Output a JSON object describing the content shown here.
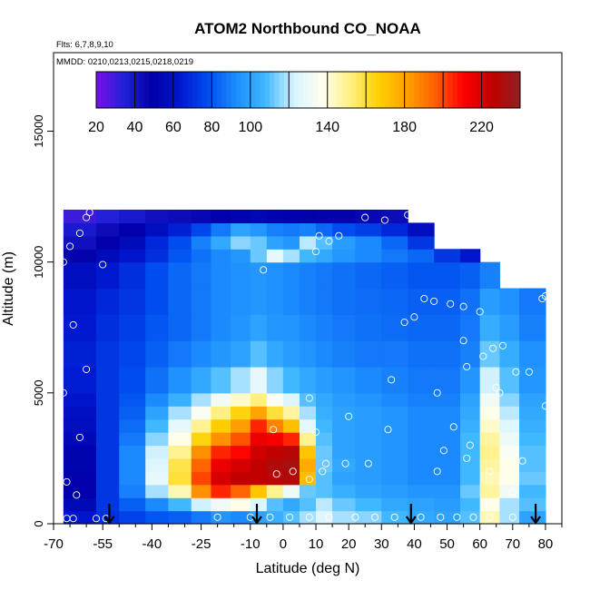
{
  "chart_data": {
    "type": "heatmap",
    "title": "ATOM2 Northbound CO_NOAA",
    "flights_label": "Flts: 6,7,8,9,10",
    "dates_label": "MMDD: 0210,0213,0215,0218,0219",
    "xlabel": "Latitude (deg N)",
    "ylabel": "Altitude (m)",
    "xlim": [
      -70,
      85
    ],
    "ylim": [
      0,
      18000
    ],
    "x_ticks": [
      -70,
      -55,
      -40,
      -25,
      -10,
      0,
      10,
      20,
      30,
      40,
      50,
      60,
      70,
      80
    ],
    "y_ticks": [
      0,
      5000,
      10000,
      15000
    ],
    "y_tick_labels": [
      "0",
      "5000",
      "10000",
      "15000"
    ],
    "colorbar": {
      "range": [
        20,
        240
      ],
      "ticks": [
        20,
        40,
        60,
        80,
        100,
        140,
        180,
        220
      ],
      "colors": [
        "#7a10e8",
        "#2020d8",
        "#0000a8",
        "#0018d0",
        "#0050f0",
        "#1e90ff",
        "#40b8ff",
        "#d8f4ff",
        "#fffff0",
        "#fff080",
        "#ffd000",
        "#ffa000",
        "#ff6000",
        "#ff0000",
        "#c00000",
        "#902020"
      ]
    },
    "heatmap": {
      "lat_edges": [
        -67,
        -57,
        -50,
        -42,
        -35,
        -28,
        -22,
        -16,
        -10,
        -5,
        0,
        5,
        10,
        15,
        22,
        30,
        38,
        46,
        54,
        60,
        66,
        72,
        80
      ],
      "alt_edges": [
        0,
        500,
        1000,
        1500,
        2000,
        2500,
        3000,
        3500,
        4000,
        4500,
        5000,
        6000,
        7000,
        8000,
        9000,
        10000,
        10500,
        11000,
        11500,
        12000
      ],
      "alt_max_by_column": [
        12000,
        12000,
        12000,
        12000,
        12000,
        12000,
        12000,
        12000,
        12000,
        12000,
        12000,
        12000,
        12000,
        12000,
        12000,
        12000,
        11500,
        10500,
        10500,
        10000,
        9500,
        9000
      ],
      "values": [
        [
          62,
          70,
          75,
          80,
          82,
          88,
          95,
          92,
          100,
          105,
          110,
          118,
          125,
          118,
          115,
          108,
          102,
          100,
          110,
          145,
          118,
          100
        ],
        [
          55,
          72,
          82,
          92,
          108,
          122,
          132,
          138,
          125,
          110,
          102,
          110,
          120,
          112,
          108,
          102,
          100,
          98,
          108,
          138,
          118,
          110
        ],
        [
          50,
          72,
          90,
          118,
          145,
          185,
          205,
          195,
          170,
          150,
          130,
          112,
          110,
          105,
          100,
          98,
          95,
          95,
          112,
          148,
          132,
          108
        ],
        [
          50,
          72,
          92,
          128,
          160,
          200,
          220,
          225,
          225,
          228,
          230,
          172,
          110,
          100,
          98,
          95,
          92,
          92,
          108,
          145,
          138,
          112
        ],
        [
          52,
          72,
          92,
          125,
          158,
          195,
          215,
          220,
          225,
          230,
          232,
          178,
          112,
          102,
          98,
          95,
          92,
          92,
          108,
          148,
          138,
          110
        ],
        [
          52,
          72,
          92,
          122,
          150,
          185,
          205,
          210,
          222,
          225,
          228,
          170,
          112,
          100,
          98,
          95,
          92,
          92,
          108,
          150,
          135,
          110
        ],
        [
          55,
          72,
          88,
          115,
          138,
          165,
          185,
          198,
          215,
          212,
          205,
          150,
          110,
          100,
          98,
          95,
          92,
          92,
          108,
          148,
          130,
          108
        ],
        [
          58,
          72,
          85,
          108,
          128,
          150,
          168,
          182,
          205,
          188,
          172,
          128,
          108,
          100,
          98,
          95,
          92,
          92,
          105,
          142,
          125,
          105
        ],
        [
          60,
          72,
          82,
          100,
          118,
          135,
          152,
          165,
          180,
          160,
          148,
          118,
          105,
          100,
          98,
          95,
          92,
          92,
          102,
          138,
          120,
          102
        ],
        [
          62,
          72,
          80,
          92,
          105,
          118,
          132,
          142,
          152,
          135,
          125,
          110,
          102,
          98,
          95,
          92,
          90,
          90,
          100,
          132,
          115,
          100
        ],
        [
          65,
          72,
          78,
          86,
          94,
          102,
          110,
          118,
          128,
          115,
          108,
          102,
          98,
          95,
          92,
          90,
          88,
          88,
          95,
          122,
          110,
          96
        ],
        [
          66,
          72,
          76,
          82,
          88,
          92,
          96,
          100,
          110,
          102,
          98,
          95,
          92,
          90,
          88,
          88,
          86,
          86,
          90,
          112,
          104,
          94
        ],
        [
          64,
          70,
          74,
          80,
          84,
          88,
          92,
          95,
          100,
          96,
          95,
          92,
          90,
          88,
          86,
          85,
          84,
          84,
          88,
          104,
          98,
          90
        ],
        [
          62,
          68,
          72,
          78,
          84,
          88,
          92,
          94,
          96,
          94,
          92,
          90,
          88,
          86,
          85,
          84,
          82,
          82,
          86,
          98,
          94,
          88
        ],
        [
          58,
          64,
          70,
          78,
          84,
          88,
          92,
          94,
          96,
          94,
          92,
          90,
          88,
          86,
          84,
          82,
          80,
          80,
          82,
          90,
          88,
          84
        ],
        [
          48,
          56,
          62,
          70,
          80,
          86,
          92,
          96,
          112,
          128,
          118,
          108,
          102,
          96,
          92,
          88,
          84,
          72,
          62,
          60,
          58,
          55
        ],
        [
          42,
          50,
          56,
          68,
          78,
          90,
          102,
          115,
          112,
          100,
          96,
          120,
          110,
          98,
          92,
          84,
          72,
          60,
          52,
          48,
          45,
          42
        ],
        [
          38,
          44,
          50,
          58,
          66,
          76,
          88,
          100,
          96,
          90,
          88,
          90,
          84,
          78,
          74,
          68,
          58,
          50,
          45,
          42,
          40,
          38
        ],
        [
          30,
          34,
          38,
          42,
          44,
          46,
          50,
          52,
          54,
          52,
          50,
          50,
          48,
          48,
          46,
          44,
          44,
          40,
          38,
          36,
          34,
          32
        ]
      ]
    },
    "observations": [
      [
        -66,
        200
      ],
      [
        -64,
        200
      ],
      [
        -63,
        1100
      ],
      [
        -66,
        1600
      ],
      [
        -62,
        3300
      ],
      [
        -60,
        5900
      ],
      [
        -64,
        7600
      ],
      [
        -67,
        5000
      ],
      [
        -67,
        10000
      ],
      [
        -65,
        10600
      ],
      [
        -62,
        11100
      ],
      [
        -60,
        11700
      ],
      [
        -59,
        11900
      ],
      [
        -55,
        9900
      ],
      [
        -57,
        200
      ],
      [
        -54,
        200
      ],
      [
        -20,
        250
      ],
      [
        -10,
        250
      ],
      [
        -4,
        250
      ],
      [
        2,
        250
      ],
      [
        8,
        250
      ],
      [
        14,
        250
      ],
      [
        22,
        250
      ],
      [
        28,
        250
      ],
      [
        34,
        250
      ],
      [
        42,
        250
      ],
      [
        48,
        250
      ],
      [
        53,
        250
      ],
      [
        58,
        250
      ],
      [
        63,
        250
      ],
      [
        70,
        250
      ],
      [
        -6,
        9700
      ],
      [
        -3,
        3600
      ],
      [
        -2,
        1900
      ],
      [
        3,
        2000
      ],
      [
        8,
        1700
      ],
      [
        10,
        3500
      ],
      [
        12,
        2000
      ],
      [
        13,
        2300
      ],
      [
        8,
        4800
      ],
      [
        20,
        4100
      ],
      [
        19,
        2300
      ],
      [
        26,
        2300
      ],
      [
        32,
        3600
      ],
      [
        33,
        5500
      ],
      [
        37,
        7700
      ],
      [
        40,
        7900
      ],
      [
        43,
        8600
      ],
      [
        46,
        8500
      ],
      [
        47,
        5000
      ],
      [
        47,
        2000
      ],
      [
        49,
        2800
      ],
      [
        51,
        8400
      ],
      [
        52,
        3700
      ],
      [
        55,
        7000
      ],
      [
        55,
        8300
      ],
      [
        56,
        6000
      ],
      [
        56,
        2500
      ],
      [
        57,
        3000
      ],
      [
        60,
        8100
      ],
      [
        61,
        6400
      ],
      [
        63,
        2000
      ],
      [
        64,
        6700
      ],
      [
        65,
        5200
      ],
      [
        66,
        5000
      ],
      [
        67,
        6800
      ],
      [
        70,
        1200
      ],
      [
        71,
        5800
      ],
      [
        73,
        2400
      ],
      [
        75,
        5800
      ],
      [
        76,
        9400
      ],
      [
        79,
        8600
      ],
      [
        80,
        8700
      ],
      [
        80,
        4500
      ],
      [
        11,
        11000
      ],
      [
        14,
        10800
      ],
      [
        17,
        11000
      ],
      [
        25,
        11700
      ],
      [
        31,
        11600
      ],
      [
        38,
        11800
      ],
      [
        10,
        10400
      ]
    ],
    "arrows_at_latitude": [
      -53,
      -8,
      39,
      77
    ]
  }
}
